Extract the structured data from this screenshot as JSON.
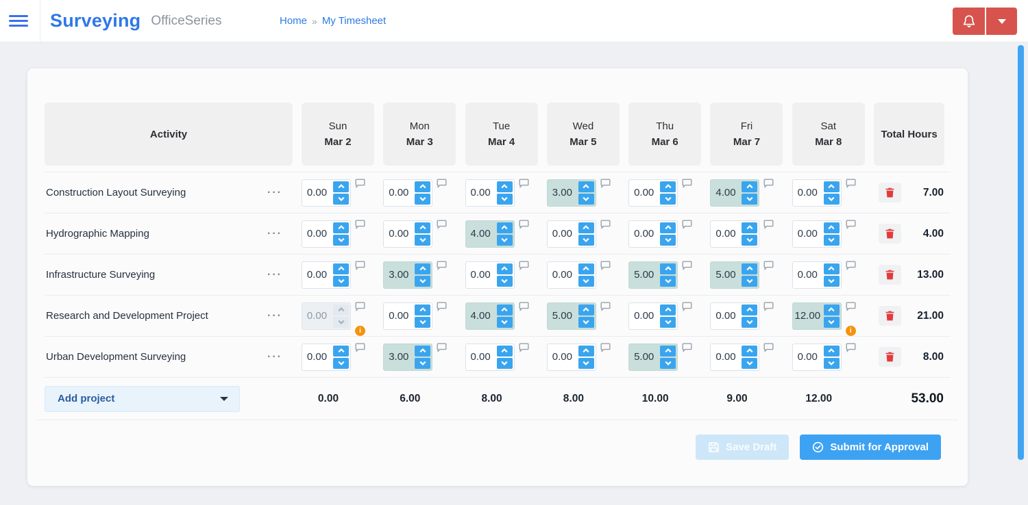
{
  "header": {
    "app_title": "Surveying",
    "app_subtitle": "OfficeSeries",
    "breadcrumb": {
      "home": "Home",
      "separator": "»",
      "current": "My Timesheet"
    }
  },
  "table": {
    "activity_header": "Activity",
    "total_header": "Total Hours",
    "row_menu_glyph": "···",
    "days": [
      {
        "name": "Sun",
        "date": "Mar 2"
      },
      {
        "name": "Mon",
        "date": "Mar 3"
      },
      {
        "name": "Tue",
        "date": "Mar 4"
      },
      {
        "name": "Wed",
        "date": "Mar 5"
      },
      {
        "name": "Thu",
        "date": "Mar 6"
      },
      {
        "name": "Fri",
        "date": "Mar 7"
      },
      {
        "name": "Sat",
        "date": "Mar 8"
      }
    ],
    "rows": [
      {
        "activity": "Construction Layout Surveying",
        "cells": [
          {
            "value": "0.00"
          },
          {
            "value": "0.00"
          },
          {
            "value": "0.00"
          },
          {
            "value": "3.00",
            "filled": true
          },
          {
            "value": "0.00"
          },
          {
            "value": "4.00",
            "filled": true
          },
          {
            "value": "0.00"
          }
        ],
        "total": "7.00"
      },
      {
        "activity": "Hydrographic Mapping",
        "cells": [
          {
            "value": "0.00"
          },
          {
            "value": "0.00"
          },
          {
            "value": "4.00",
            "filled": true
          },
          {
            "value": "0.00"
          },
          {
            "value": "0.00"
          },
          {
            "value": "0.00"
          },
          {
            "value": "0.00"
          }
        ],
        "total": "4.00"
      },
      {
        "activity": "Infrastructure Surveying",
        "cells": [
          {
            "value": "0.00"
          },
          {
            "value": "3.00",
            "filled": true
          },
          {
            "value": "0.00"
          },
          {
            "value": "0.00"
          },
          {
            "value": "5.00",
            "filled": true
          },
          {
            "value": "5.00",
            "filled": true
          },
          {
            "value": "0.00"
          }
        ],
        "total": "13.00"
      },
      {
        "activity": "Research and Development Project",
        "cells": [
          {
            "value": "0.00",
            "disabled": true,
            "info": true
          },
          {
            "value": "0.00"
          },
          {
            "value": "4.00",
            "filled": true
          },
          {
            "value": "5.00",
            "filled": true
          },
          {
            "value": "0.00"
          },
          {
            "value": "0.00"
          },
          {
            "value": "12.00",
            "filled": true,
            "info": true
          }
        ],
        "total": "21.00"
      },
      {
        "activity": "Urban Development Surveying",
        "cells": [
          {
            "value": "0.00"
          },
          {
            "value": "3.00",
            "filled": true
          },
          {
            "value": "0.00"
          },
          {
            "value": "0.00"
          },
          {
            "value": "5.00",
            "filled": true
          },
          {
            "value": "0.00"
          },
          {
            "value": "0.00"
          }
        ],
        "total": "8.00"
      }
    ],
    "footer": {
      "add_project_label": "Add project",
      "day_totals": [
        "0.00",
        "6.00",
        "8.00",
        "8.00",
        "10.00",
        "9.00",
        "12.00"
      ],
      "grand_total": "53.00"
    }
  },
  "actions": {
    "save_draft_label": "Save Draft",
    "submit_label": "Submit for Approval"
  },
  "icons": {
    "menu": "hamburger-icon",
    "notifications": "bell-icon",
    "user_menu": "caret-down-icon",
    "row_menu": "ellipsis-icon",
    "spin_up": "chevron-up-icon",
    "spin_down": "chevron-down-icon",
    "comment": "speech-bubble-icon",
    "warning": "info-circle-icon",
    "delete": "trash-icon",
    "save": "floppy-disk-icon",
    "submit": "check-circle-icon"
  },
  "colors": {
    "brand_blue": "#2f78e6",
    "link_blue": "#2a7ce3",
    "danger_red": "#d6544d",
    "spinner_blue": "#3aa5ee",
    "filled_teal": "#c9dfdb",
    "warning_orange": "#f6920b",
    "trash_red": "#e23b3b",
    "submit_blue": "#3da2f2",
    "save_disabled_blue": "#cde7f8",
    "scrollbar_blue": "#41a4f2",
    "page_bg": "#eef0f4",
    "header_cell_bg": "#f0f0f1"
  }
}
